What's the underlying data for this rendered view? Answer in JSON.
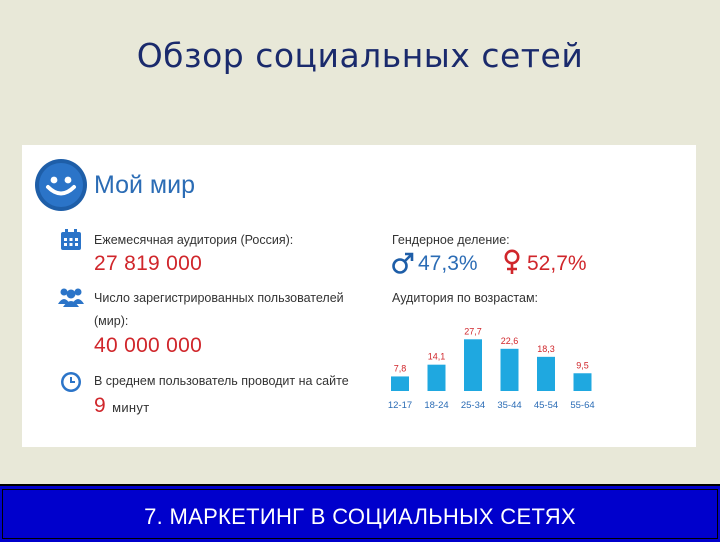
{
  "slide_title": "Обзор социальных сетей",
  "card": {
    "brand": "Мой мир",
    "monthly_audience_label": "Ежемесячная аудитория (Россия):",
    "monthly_audience_value": "27 819 000",
    "registered_label_1": "Число зарегистрированных пользователей",
    "registered_label_2": "(мир):",
    "registered_value": "40 000 000",
    "time_label": "В среднем пользователь проводит на сайте",
    "time_value": "9",
    "time_unit": "минут",
    "gender_label": "Гендерное деление:",
    "male_value": "47,3%",
    "female_value": "52,7%",
    "age_label": "Аудитория по возрастам:"
  },
  "colors": {
    "accent_red": "#d0262b",
    "bar_blue": "#1fa8e0",
    "brand_blue": "#2b6cb5"
  },
  "chart_data": {
    "type": "bar",
    "categories": [
      "12-17",
      "18-24",
      "25-34",
      "35-44",
      "45-54",
      "55-64"
    ],
    "values": [
      7.8,
      14.1,
      27.7,
      22.6,
      18.3,
      9.5
    ],
    "labels": [
      "7,8",
      "14,1",
      "27,7",
      "22,6",
      "18,3",
      "9,5"
    ],
    "title": "",
    "xlabel": "",
    "ylabel": "",
    "ylim": [
      0,
      30
    ]
  },
  "footer": {
    "text": "7. МАРКЕТИНГ В СОЦИАЛЬНЫХ СЕТЯХ"
  }
}
